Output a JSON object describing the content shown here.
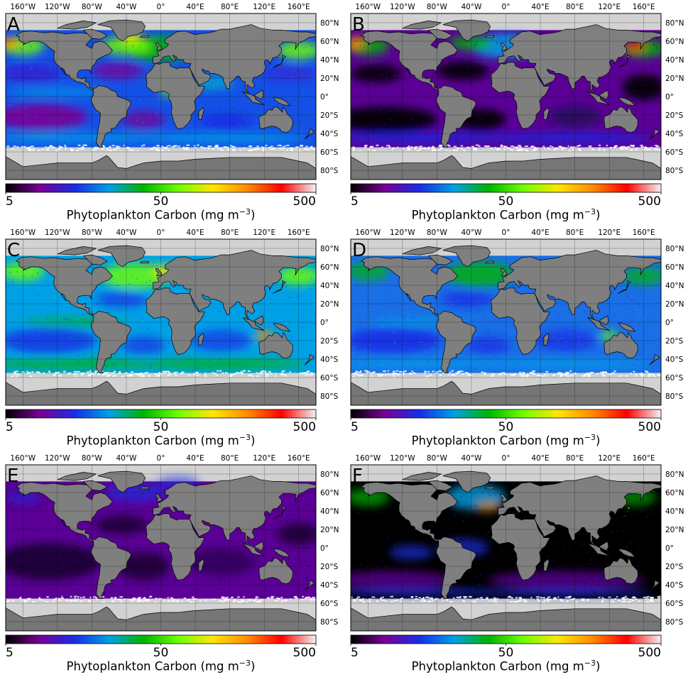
{
  "panels": [
    {
      "letter": "A",
      "scene": "A"
    },
    {
      "letter": "B",
      "scene": "B"
    },
    {
      "letter": "C",
      "scene": "C"
    },
    {
      "letter": "D",
      "scene": "D"
    },
    {
      "letter": "E",
      "scene": "E"
    },
    {
      "letter": "F",
      "scene": "F"
    }
  ],
  "lon_labels": [
    "160°W",
    "120°W",
    "80°W",
    "40°W",
    "0°",
    "40°E",
    "80°E",
    "120°E",
    "160°E"
  ],
  "lat_labels": [
    "80°N",
    "60°N",
    "40°N",
    "20°N",
    "0°",
    "20°S",
    "40°S",
    "60°S",
    "80°S"
  ],
  "colorbar": {
    "min_label": "5",
    "mid_label": "50",
    "max_label": "500",
    "title": "Phytoplankton Carbon (mg m",
    "title_exp": "−3",
    "title_close": ")",
    "colors": [
      "#000000",
      "#7a0096",
      "#1a2ce6",
      "#00a0e6",
      "#00b400",
      "#6eff00",
      "#ffe600",
      "#ff8c00",
      "#ff0000",
      "#f2f2f2"
    ]
  },
  "colors": {
    "land": "#7f7f7f",
    "nodata": "#d2d2d2",
    "antarctic_land": "#767676"
  }
}
